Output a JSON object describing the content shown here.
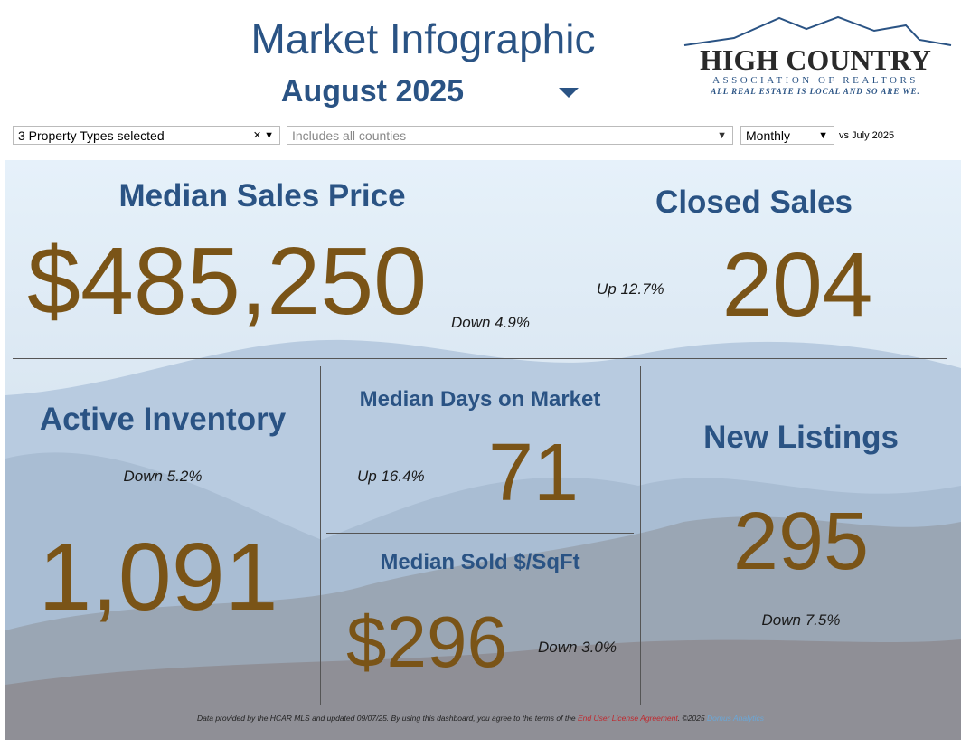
{
  "header": {
    "title": "Market Infographic",
    "subtitle": "August 2025"
  },
  "logo": {
    "name": "HIGH COUNTRY",
    "association": "ASSOCIATION OF REALTORS",
    "tagline": "ALL REAL ESTATE IS LOCAL AND SO ARE WE."
  },
  "filters": {
    "property_types": "3 Property Types selected",
    "counties": "Includes all counties",
    "period": "Monthly",
    "comparison": "vs July 2025"
  },
  "metrics": [
    {
      "title": "Median Sales Price",
      "value": "$485,250",
      "change": "Down 4.9%"
    },
    {
      "title": "Closed Sales",
      "value": "204",
      "change": "Up 12.7%"
    },
    {
      "title": "Active Inventory",
      "value": "1,091",
      "change": "Down 5.2%"
    },
    {
      "title": "Median Days on Market",
      "value": "71",
      "change": "Up 16.4%"
    },
    {
      "title": "Median Sold $/SqFt",
      "value": "$296",
      "change": "Down 3.0%"
    },
    {
      "title": "New Listings",
      "value": "295",
      "change": "Down 7.5%"
    }
  ],
  "footer": {
    "text": "Data provided by the HCAR MLS and updated 09/07/25.  By using this dashboard, you agree to the terms of the ",
    "link": "End User License Agreement",
    "suffix": ".  ©2025 ",
    "brand": "Domus Analytics"
  }
}
